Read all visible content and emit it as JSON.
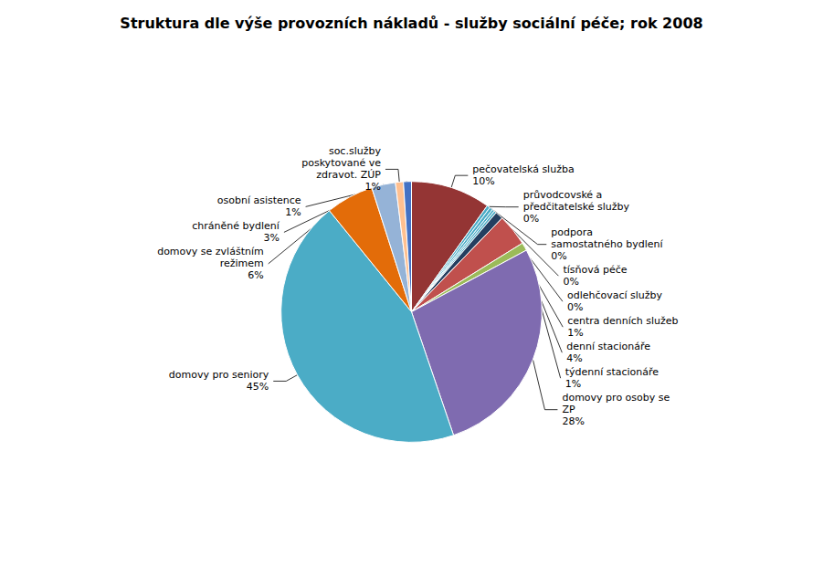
{
  "chart_data": {
    "type": "pie",
    "title": "Struktura dle výše provozních nákladů - služby sociální péče; rok 2008",
    "categories": [
      "pečovatelská služba",
      "průvodcovské a\npředčitatelské služby",
      "podpora\nsamostatného bydlení",
      "tísňová péče",
      "odlehčovací služby",
      "centra denních služeb",
      "denní stacionáře",
      "týdenní stacionáře",
      "domovy pro osoby se\nZP",
      "domovy pro seniory",
      "domovy se zvláštním\nrežimem",
      "chráněné bydlení",
      "soc.služby\nposkytované ve\nzdravot. ZÚP",
      "osobní asistence"
    ],
    "values": [
      10,
      0.4,
      0.4,
      0.3,
      0.3,
      1.0,
      4.0,
      1.0,
      28,
      45,
      6,
      3,
      1,
      1
    ],
    "value_labels": [
      "10%",
      "0%",
      "0%",
      "0%",
      "0%",
      "1%",
      "4%",
      "1%",
      "28%",
      "45%",
      "6%",
      "3%",
      "1%",
      "1%"
    ],
    "colors": [
      "#943534",
      "#4BACC6",
      "#4BACC6",
      "#4BACC6",
      "#4BACC6",
      "#243F60",
      "#C0504D",
      "#9BBB59",
      "#7F6BB0",
      "#4BACC6",
      "#E36C09",
      "#95B3D7",
      "#FFC090",
      "#4472C4"
    ],
    "data_labels": true
  }
}
